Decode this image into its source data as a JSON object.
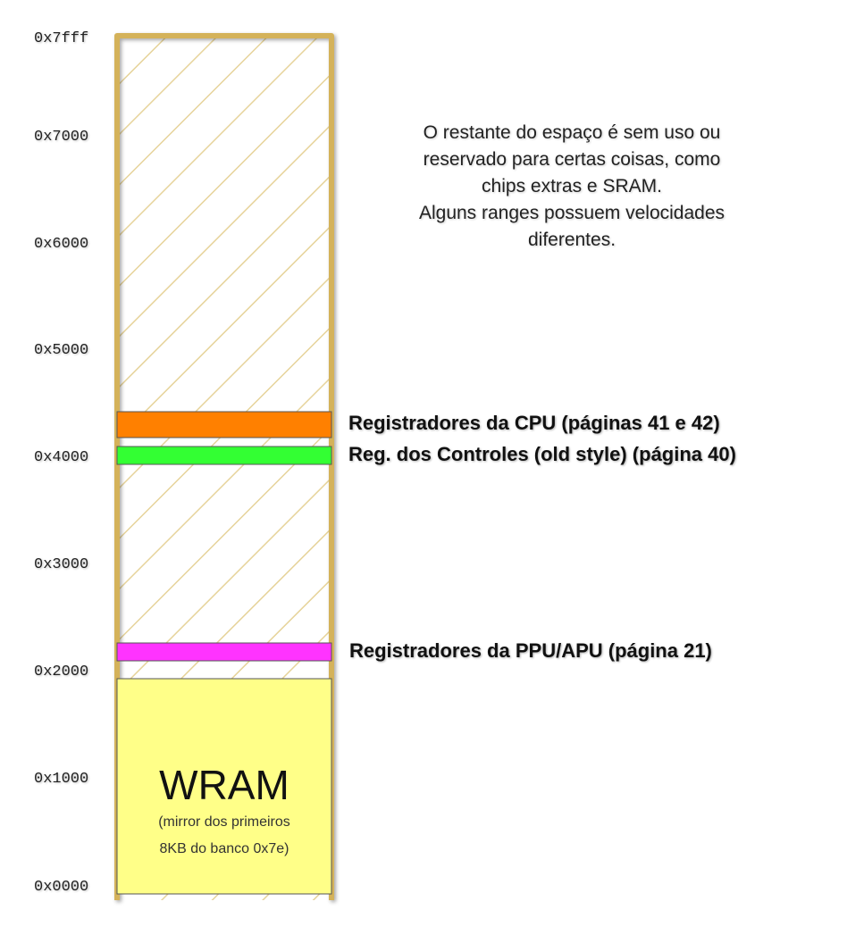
{
  "colors": {
    "frame": "#d4b25a",
    "hatch": "#e6d39a",
    "cpu_regs": "#ff8000",
    "controller_regs": "#33ff33",
    "ppu_apu_regs": "#ff33ff",
    "wram": "#ffff88"
  },
  "addresses": [
    "0x7fff",
    "0x7000",
    "0x6000",
    "0x5000",
    "0x4000",
    "0x3000",
    "0x2000",
    "0x1000",
    "0x0000"
  ],
  "note": {
    "lines": [
      "O restante do espaço é sem uso ou",
      "reservado para certas coisas, como",
      "chips extras e SRAM.",
      "Alguns ranges possuem velocidades",
      "diferentes."
    ]
  },
  "regions": {
    "cpu_label": "Registradores da CPU (páginas 41 e 42)",
    "controller_label": "Reg. dos Controles (old style) (página 40)",
    "ppu_apu_label": "Registradores da PPU/APU (página 21)"
  },
  "wram": {
    "title": "WRAM",
    "subtitle_lines": [
      "(mirror dos primeiros",
      "8KB do banco 0x7e)"
    ]
  }
}
